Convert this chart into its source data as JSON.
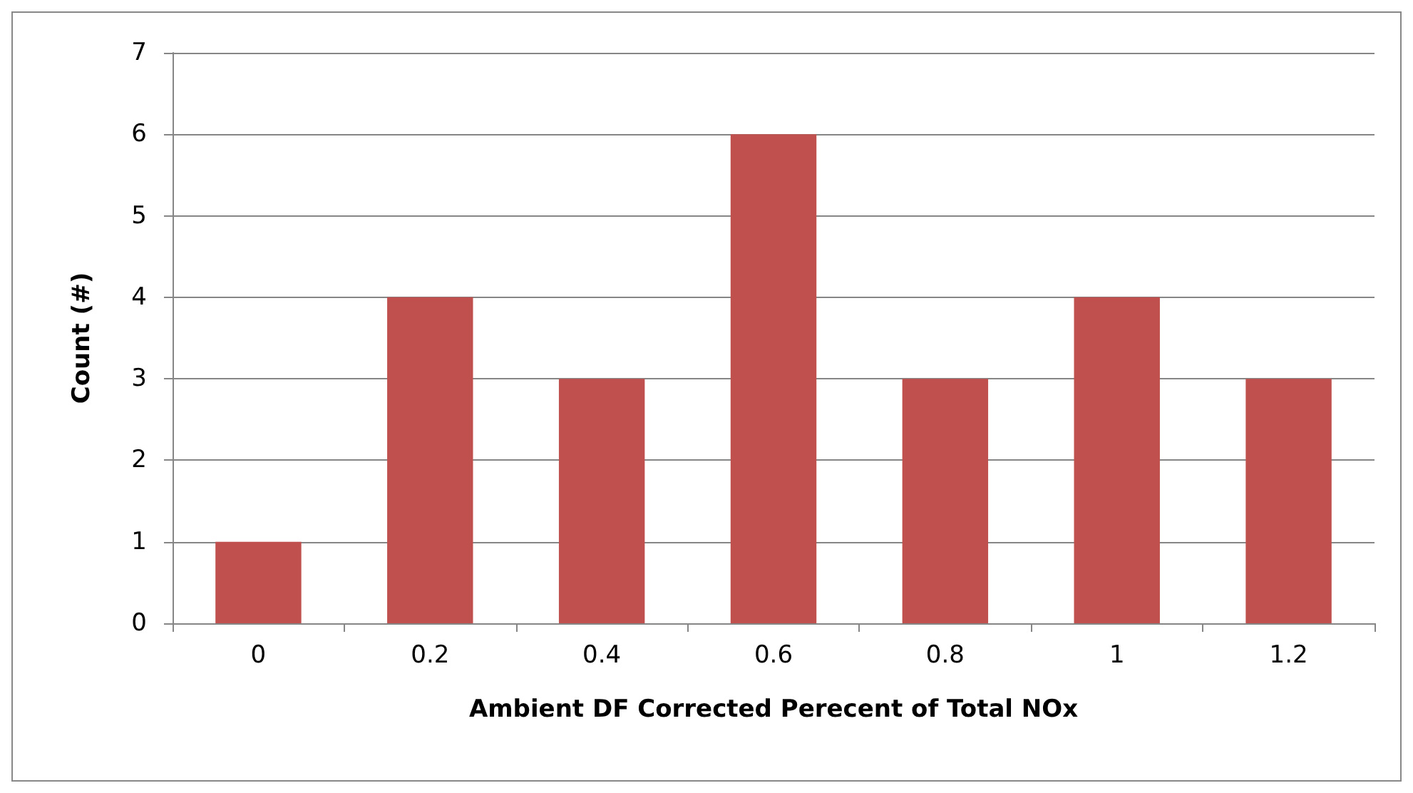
{
  "chart_data": {
    "type": "bar",
    "xlabel": "Ambient DF Corrected Perecent of Total NOx",
    "ylabel": "Count (#)",
    "categories": [
      "0",
      "0.2",
      "0.4",
      "0.6",
      "0.8",
      "1",
      "1.2"
    ],
    "values": [
      1,
      4,
      3,
      6,
      3,
      4,
      3
    ],
    "color": "#c0504d",
    "ylim": [
      0,
      7
    ],
    "yticks": [
      0,
      1,
      2,
      3,
      4,
      5,
      6,
      7
    ],
    "grid": "y"
  }
}
